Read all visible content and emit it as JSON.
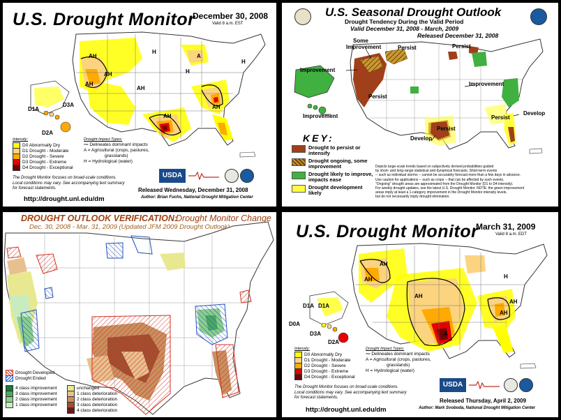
{
  "panel1": {
    "title": "U.S. Drought Monitor",
    "date": "December 30, 2008",
    "valid": "Valid 8 a.m. EST",
    "intensity_heading": "Intensity:",
    "intensity": [
      {
        "label": "D0 Abnormally Dry",
        "color": "#ffff00"
      },
      {
        "label": "D1 Drought - Moderate",
        "color": "#fcd37f"
      },
      {
        "label": "D2 Drought - Severe",
        "color": "#ffaa00"
      },
      {
        "label": "D3 Drought - Extreme",
        "color": "#e60000"
      },
      {
        "label": "D4 Drought - Exceptional",
        "color": "#730000"
      }
    ],
    "impact_heading": "Drought Impact Types:",
    "impacts": [
      "Delineates dominant impacts",
      "A = Agricultural (crops, pastures,",
      "grasslands)",
      "H = Hydrological (water)"
    ],
    "note1": "The Drought Monitor focuses on broad-scale conditions.",
    "note2": "Local conditions may vary. See accompanying text summary",
    "note3": "for forecast statements.",
    "usda": "USDA",
    "released": "Released Wednesday, December 31, 2008",
    "author": "Author: Brian Fuchs, National Drought Mitigation Center",
    "url": "http://drought.unl.edu/dm",
    "map_labels": {
      "ah1": "AH",
      "ah2": "AH",
      "ah3": "AH",
      "ah4": "AH",
      "ah5": "AH",
      "ah6": "AH",
      "a1": "A",
      "h1": "H",
      "h2": "H",
      "h3": "H",
      "d1a": "D1A",
      "d3a": "D3A",
      "d2a": "D2A"
    }
  },
  "panel2": {
    "title": "U.S. Seasonal Drought Outlook",
    "subtitle": "Drought Tendency During the Valid Period",
    "valid": "Valid December 31, 2008 - March, 2009",
    "released": "Released December 31, 2008",
    "key_title": "KEY:",
    "key": [
      {
        "label": "Drought to persist or intensify",
        "color": "#a0401a"
      },
      {
        "label": "Drought ongoing, some improvement",
        "color": "#a07020"
      },
      {
        "label": "Drought likely to improve, impacts ease",
        "color": "#40b040"
      },
      {
        "label": "Drought development likely",
        "color": "#ffff40"
      }
    ],
    "map_labels": {
      "some_improvement_1": "Some",
      "some_improvement_2": "Improvement",
      "persist_nw": "Persist",
      "persist_ne": "Persist",
      "improvement_w": "Improvement",
      "persist_sw": "Persist",
      "improvement_c": "Improvement",
      "improvement_hi": "Improvement",
      "persist_tx": "Persist",
      "develop_tx": "Develop",
      "develop_se": "Develop",
      "persist_fl": "Persist"
    },
    "notes": [
      "Depicts large-scale trends based on subjectively derived probabilities guided",
      "by short- and long-range statistical and dynamical forecasts. Short-term events",
      "-- such as individual storms -- cannot be accurately forecast more than a few days in advance.",
      "Use caution for applications -- such as crops -- that can be affected by such events.",
      "\"Ongoing\" drought areas are approximated from the Drought Monitor (D1 to D4 intensity).",
      "For weekly drought updates, see the latest U.S. Drought Monitor. NOTE: the green improvement",
      "areas imply at least a 1-category improvement in the Drought Monitor intensity levels,",
      "but do not necessarily imply drought elimination."
    ]
  },
  "panel3": {
    "title_a": "DROUGHT OUTLOOK VERIFICATION:",
    "title_b": "Drought Monitor Change",
    "subtitle": "Dec. 30, 2008 - Mar. 31, 2009 (Updated JFM 2009 Drought Outlook)",
    "developed": "Drought Developed",
    "ended": "Drought Ended",
    "improvement": [
      {
        "label": "4 class improvement",
        "color": "#1a7a3a"
      },
      {
        "label": "3 class improvement",
        "color": "#4aa860"
      },
      {
        "label": "2 class improvement",
        "color": "#8ccf8a"
      },
      {
        "label": "1 class improvement",
        "color": "#c8ecc0"
      }
    ],
    "deterioration": [
      {
        "label": "unchanged",
        "color": "#e8e890"
      },
      {
        "label": "1 class deterioration",
        "color": "#e8c090"
      },
      {
        "label": "2 class deterioration",
        "color": "#c89060"
      },
      {
        "label": "3 class deterioration",
        "color": "#a05030"
      },
      {
        "label": "4 class deterioration",
        "color": "#701818"
      }
    ]
  },
  "panel4": {
    "title": "U.S. Drought Monitor",
    "date": "March 31, 2009",
    "valid": "Valid 8 a.m. EDT",
    "intensity_heading": "Intensity:",
    "intensity": [
      {
        "label": "D0 Abnormally Dry",
        "color": "#ffff00"
      },
      {
        "label": "D1 Drought - Moderate",
        "color": "#fcd37f"
      },
      {
        "label": "D2 Drought - Severe",
        "color": "#ffaa00"
      },
      {
        "label": "D3 Drought - Extreme",
        "color": "#e60000"
      },
      {
        "label": "D4 Drought - Exceptional",
        "color": "#730000"
      }
    ],
    "impact_heading": "Drought Impact Types:",
    "impacts": [
      "Delineates dominant impacts",
      "A = Agricultural (crops, pastures,",
      "grasslands)",
      "H = Hydrological (water)"
    ],
    "note1": "The Drought Monitor focuses on broad-scale conditions.",
    "note2": "Local conditions may vary. See accompanying text summary",
    "note3": "for forecast statements.",
    "usda": "USDA",
    "released": "Released Thursday, April 2, 2009",
    "author": "Author: Mark Svoboda, National Drought Mitigation Center",
    "url": "http://drought.unl.edu/dm",
    "map_labels": {
      "ah1": "AH",
      "ah2": "AH",
      "ah3": "AH",
      "ah4": "AH",
      "ah5": "AH",
      "a1": "A",
      "h1": "H",
      "d1a_1": "D1A",
      "d1a_2": "D1A",
      "d0a": "D0A",
      "d3a": "D3A",
      "d2a": "D2A"
    }
  }
}
